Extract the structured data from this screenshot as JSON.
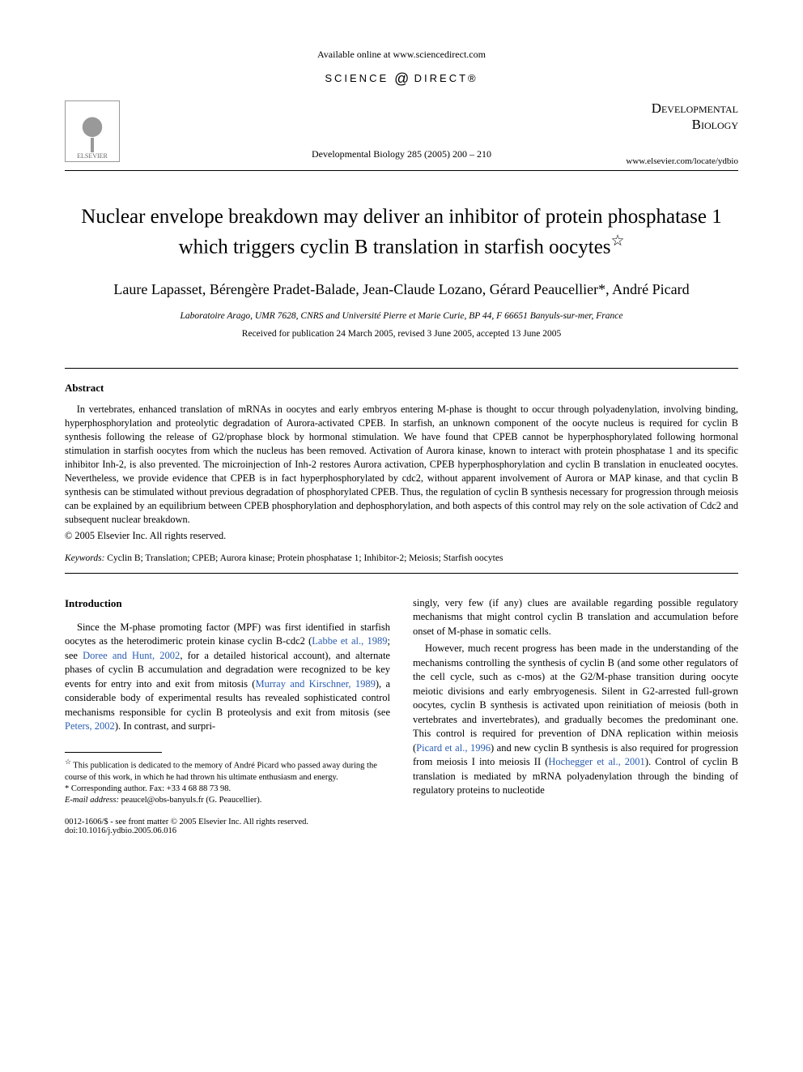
{
  "top_line": "Available online at www.sciencedirect.com",
  "sd_logo": {
    "left": "SCIENCE",
    "mid": "d",
    "right": "DIRECT®"
  },
  "elsevier": "ELSEVIER",
  "journal": {
    "line1": "Developmental",
    "line2": "Biology",
    "url": "www.elsevier.com/locate/ydbio"
  },
  "citation": "Developmental Biology 285 (2005) 200 – 210",
  "title": "Nuclear envelope breakdown may deliver an inhibitor of protein phosphatase 1 which triggers cyclin B translation in starfish oocytes",
  "title_note_marker": "☆",
  "authors": "Laure Lapasset, Bérengère Pradet-Balade, Jean-Claude Lozano, Gérard Peaucellier*, André Picard",
  "affiliation": "Laboratoire Arago, UMR 7628, CNRS and Université Pierre et Marie Curie, BP 44, F 66651 Banyuls-sur-mer, France",
  "dates": "Received for publication 24 March 2005, revised 3 June 2005, accepted 13 June 2005",
  "abstract": {
    "heading": "Abstract",
    "body": "In vertebrates, enhanced translation of mRNAs in oocytes and early embryos entering M-phase is thought to occur through polyadenylation, involving binding, hyperphosphorylation and proteolytic degradation of Aurora-activated CPEB. In starfish, an unknown component of the oocyte nucleus is required for cyclin B synthesis following the release of G2/prophase block by hormonal stimulation. We have found that CPEB cannot be hyperphosphorylated following hormonal stimulation in starfish oocytes from which the nucleus has been removed. Activation of Aurora kinase, known to interact with protein phosphatase 1 and its specific inhibitor Inh-2, is also prevented. The microinjection of Inh-2 restores Aurora activation, CPEB hyperphosphorylation and cyclin B translation in enucleated oocytes. Nevertheless, we provide evidence that CPEB is in fact hyperphosphorylated by cdc2, without apparent involvement of Aurora or MAP kinase, and that cyclin B synthesis can be stimulated without previous degradation of phosphorylated CPEB. Thus, the regulation of cyclin B synthesis necessary for progression through meiosis can be explained by an equilibrium between CPEB phosphorylation and dephosphorylation, and both aspects of this control may rely on the sole activation of Cdc2 and subsequent nuclear breakdown.",
    "copyright": "© 2005 Elsevier Inc. All rights reserved."
  },
  "keywords": {
    "label": "Keywords:",
    "list": "Cyclin B; Translation; CPEB; Aurora kinase; Protein phosphatase 1; Inhibitor-2; Meiosis; Starfish oocytes"
  },
  "intro": {
    "heading": "Introduction",
    "col1_parts": [
      {
        "t": "text",
        "v": "Since the M-phase promoting factor (MPF) was first identified in starfish oocytes as the heterodimeric protein kinase cyclin B-cdc2 ("
      },
      {
        "t": "ref",
        "v": "Labbe et al., 1989"
      },
      {
        "t": "text",
        "v": "; see "
      },
      {
        "t": "ref",
        "v": "Doree and Hunt, 2002"
      },
      {
        "t": "text",
        "v": ", for a detailed historical account), and alternate phases of cyclin B accumulation and degradation were recognized to be key events for entry into and exit from mitosis ("
      },
      {
        "t": "ref",
        "v": "Murray and Kirschner, 1989"
      },
      {
        "t": "text",
        "v": "), a considerable body of experimental results has revealed sophisticated control mechanisms responsible for cyclin B proteolysis and exit from mitosis (see "
      },
      {
        "t": "ref",
        "v": "Peters, 2002"
      },
      {
        "t": "text",
        "v": "). In contrast, and surpri-"
      }
    ],
    "col2_p1": "singly, very few (if any) clues are available regarding possible regulatory mechanisms that might control cyclin B translation and accumulation before onset of M-phase in somatic cells.",
    "col2_p2_parts": [
      {
        "t": "text",
        "v": "However, much recent progress has been made in the understanding of the mechanisms controlling the synthesis of cyclin B (and some other regulators of the cell cycle, such as c-mos) at the G2/M-phase transition during oocyte meiotic divisions and early embryogenesis. Silent in G2-arrested full-grown oocytes, cyclin B synthesis is activated upon reinitiation of meiosis (both in vertebrates and invertebrates), and gradually becomes the predominant one. This control is required for prevention of DNA replication within meiosis ("
      },
      {
        "t": "ref",
        "v": "Picard et al., 1996"
      },
      {
        "t": "text",
        "v": ") and new cyclin B synthesis is also required for progression from meiosis I into meiosis II ("
      },
      {
        "t": "ref",
        "v": "Hochegger et al., 2001"
      },
      {
        "t": "text",
        "v": "). Control of cyclin B translation is mediated by mRNA polyadenylation through the binding of regulatory proteins to nucleotide"
      }
    ]
  },
  "footnotes": {
    "dedication_marker": "☆",
    "dedication": " This publication is dedicated to the memory of André Picard who passed away during the course of this work, in which he had thrown his ultimate enthusiasm and energy.",
    "corresponding": "* Corresponding author. Fax: +33 4 68 88 73 98.",
    "email_label": "E-mail address:",
    "email": " peaucel@obs-banyuls.fr (G. Peaucellier)."
  },
  "footer": {
    "line1": "0012-1606/$ - see front matter © 2005 Elsevier Inc. All rights reserved.",
    "line2": "doi:10.1016/j.ydbio.2005.06.016"
  },
  "colors": {
    "text": "#000000",
    "ref": "#2a5db0",
    "bg": "#ffffff"
  },
  "typography": {
    "title_pt": 25,
    "authors_pt": 18,
    "body_pt": 12.5,
    "abstract_pt": 12.3,
    "footnote_pt": 10.5
  }
}
